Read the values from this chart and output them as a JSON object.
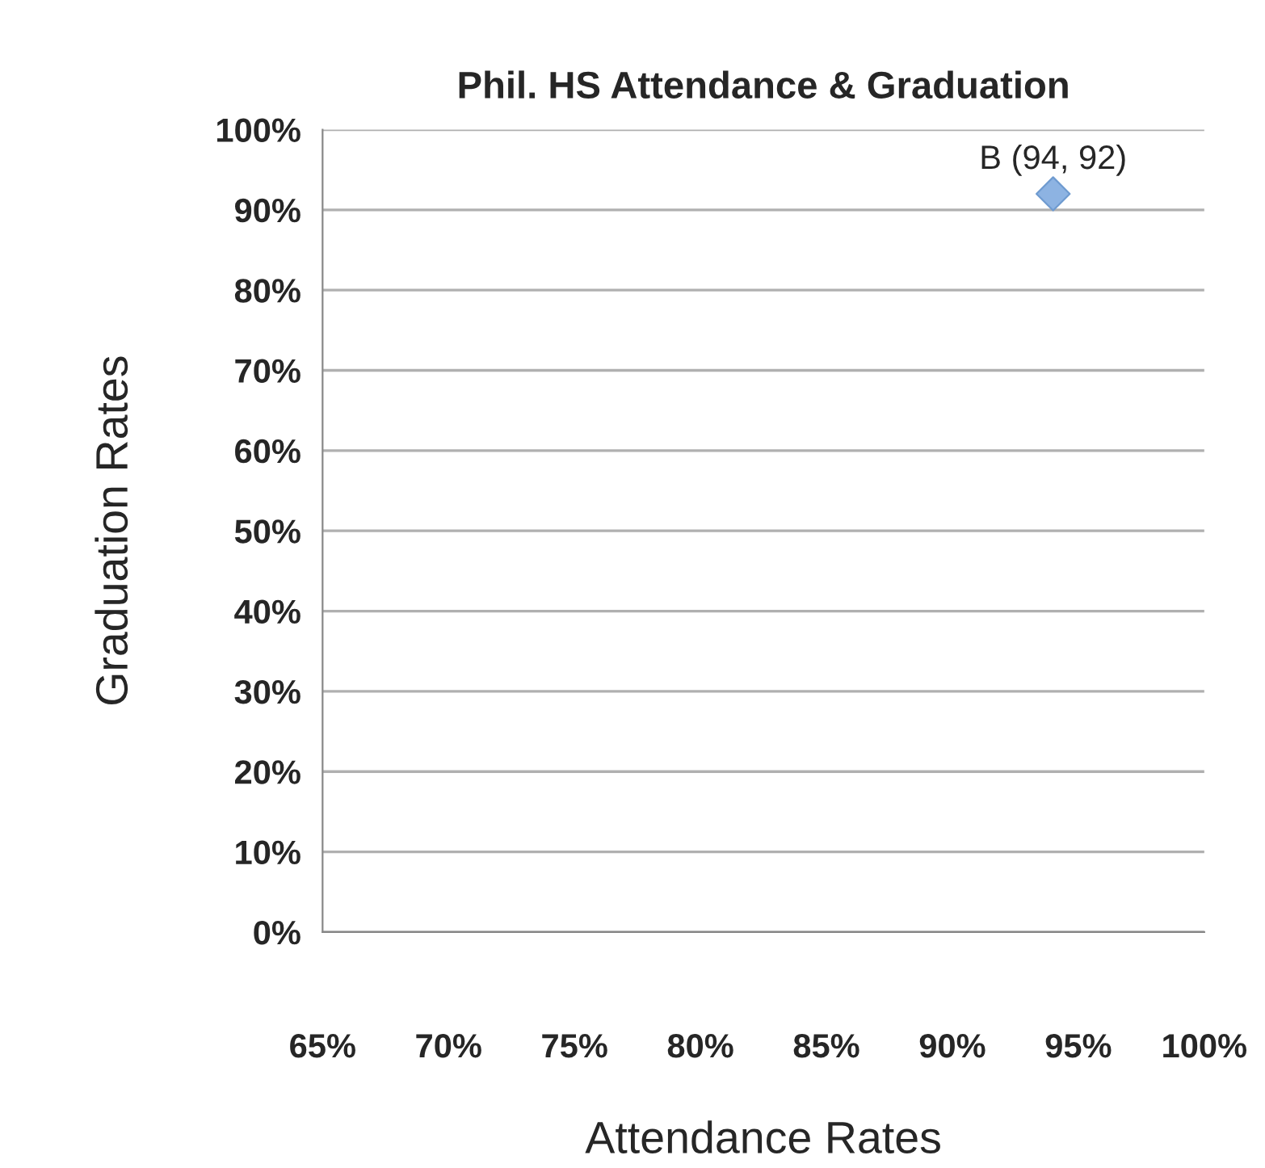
{
  "chart_data": {
    "type": "scatter",
    "title": "Phil. HS Attendance & Graduation",
    "xlabel": "Attendance Rates",
    "ylabel": "Graduation Rates",
    "x": [
      94
    ],
    "series": [
      {
        "color": "#8db3e2",
        "values": [
          92
        ]
      }
    ],
    "annotations": [
      {
        "text": "B (94, 92)",
        "x": 94,
        "y": 92
      }
    ],
    "marker": "diamond",
    "grid": "y",
    "legend": false,
    "xlim": [
      65,
      100
    ],
    "xticks": [
      {
        "value": 65,
        "label": "65%"
      },
      {
        "value": 70,
        "label": "70%"
      },
      {
        "value": 75,
        "label": "75%"
      },
      {
        "value": 80,
        "label": "80%"
      },
      {
        "value": 85,
        "label": "85%"
      },
      {
        "value": 90,
        "label": "90%"
      },
      {
        "value": 95,
        "label": "95%"
      },
      {
        "value": 100,
        "label": "100%"
      }
    ],
    "ylim": [
      0,
      100
    ],
    "yticks": [
      {
        "value": 0,
        "label": "0%"
      },
      {
        "value": 10,
        "label": "10%"
      },
      {
        "value": 20,
        "label": "20%"
      },
      {
        "value": 30,
        "label": "30%"
      },
      {
        "value": 40,
        "label": "40%"
      },
      {
        "value": 50,
        "label": "50%"
      },
      {
        "value": 60,
        "label": "60%"
      },
      {
        "value": 70,
        "label": "70%"
      },
      {
        "value": 80,
        "label": "80%"
      },
      {
        "value": 90,
        "label": "90%"
      },
      {
        "value": 100,
        "label": "100%"
      }
    ]
  }
}
